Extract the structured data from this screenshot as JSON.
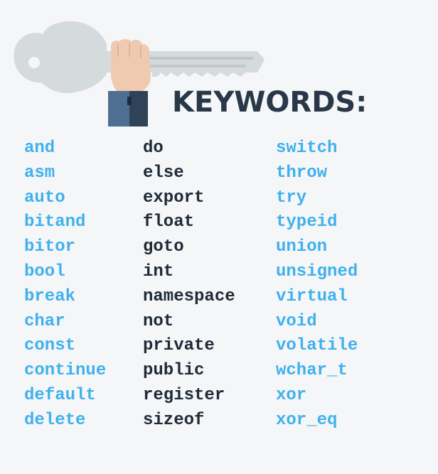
{
  "heading": {
    "title": "KEYWORDS:"
  },
  "illustration": {
    "icon": "key-in-hand-icon",
    "colors": {
      "key": "#d5dadd",
      "key_shadow": "#c0c6ca",
      "skin": "#efcab0",
      "sleeve": "#4f6f92",
      "sleeve_dark": "#2f4258"
    }
  },
  "colors": {
    "background": "#f5f6f7",
    "title": "#283849",
    "keyword_blue": "#40b1ee",
    "keyword_dark": "#202b38"
  },
  "columns": [
    {
      "style": "blue",
      "keywords": [
        "and",
        "asm",
        "auto",
        "bitand",
        "bitor",
        "bool",
        "break",
        "char",
        "const",
        "continue",
        "default",
        "delete"
      ]
    },
    {
      "style": "dark",
      "keywords": [
        "do",
        "else",
        "export",
        "float",
        "goto",
        "int",
        "namespace",
        "not",
        "private",
        "public",
        "register",
        "sizeof"
      ]
    },
    {
      "style": "blue",
      "keywords": [
        "switch",
        "throw",
        "try",
        "typeid",
        "union",
        "unsigned",
        "virtual",
        "void",
        "volatile",
        "wchar_t",
        "xor",
        "xor_eq"
      ]
    }
  ]
}
